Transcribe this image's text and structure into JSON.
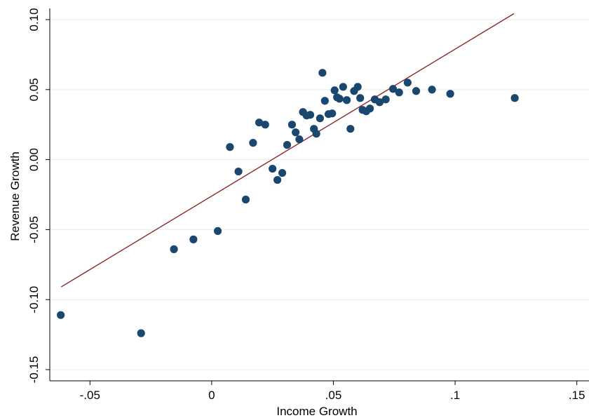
{
  "chart_data": {
    "type": "scatter",
    "xlabel": "Income Growth",
    "ylabel": "Revenue Growth",
    "xlim": [
      -0.0665,
      0.155
    ],
    "ylim": [
      -0.158,
      0.108
    ],
    "x_ticks": [
      {
        "value": -0.05,
        "label": "-.05"
      },
      {
        "value": 0,
        "label": "0"
      },
      {
        "value": 0.05,
        "label": ".05"
      },
      {
        "value": 0.1,
        "label": ".1"
      },
      {
        "value": 0.15,
        "label": ".15"
      }
    ],
    "y_ticks": [
      {
        "value": 0.1,
        "label": "0.10"
      },
      {
        "value": 0.05,
        "label": "0.05"
      },
      {
        "value": 0.0,
        "label": "0.00"
      },
      {
        "value": -0.05,
        "label": "-0.05"
      },
      {
        "value": -0.1,
        "label": "-0.10"
      },
      {
        "value": -0.15,
        "label": "-0.15"
      }
    ],
    "grid": true,
    "colors": {
      "points": "#1a476f",
      "fit_line": "#8b2a2a",
      "grid": "#eaf1f3"
    },
    "fit_line": {
      "x": [
        -0.0618,
        0.1242
      ],
      "y": [
        -0.0909,
        0.1043
      ]
    },
    "points": [
      {
        "x": -0.062,
        "y": -0.111
      },
      {
        "x": -0.029,
        "y": -0.124
      },
      {
        "x": -0.0155,
        "y": -0.064
      },
      {
        "x": -0.0075,
        "y": -0.057
      },
      {
        "x": 0.0025,
        "y": -0.051
      },
      {
        "x": 0.0075,
        "y": 0.009
      },
      {
        "x": 0.011,
        "y": -0.0085
      },
      {
        "x": 0.014,
        "y": -0.0285
      },
      {
        "x": 0.017,
        "y": 0.012
      },
      {
        "x": 0.0195,
        "y": 0.0265
      },
      {
        "x": 0.022,
        "y": 0.025
      },
      {
        "x": 0.025,
        "y": -0.0065
      },
      {
        "x": 0.027,
        "y": -0.0145
      },
      {
        "x": 0.029,
        "y": -0.0095
      },
      {
        "x": 0.031,
        "y": 0.0105
      },
      {
        "x": 0.033,
        "y": 0.025
      },
      {
        "x": 0.0345,
        "y": 0.0195
      },
      {
        "x": 0.036,
        "y": 0.0145
      },
      {
        "x": 0.0375,
        "y": 0.034
      },
      {
        "x": 0.039,
        "y": 0.0315
      },
      {
        "x": 0.0405,
        "y": 0.032
      },
      {
        "x": 0.042,
        "y": 0.022
      },
      {
        "x": 0.043,
        "y": 0.0185
      },
      {
        "x": 0.0445,
        "y": 0.0295
      },
      {
        "x": 0.0455,
        "y": 0.062
      },
      {
        "x": 0.0465,
        "y": 0.042
      },
      {
        "x": 0.048,
        "y": 0.0325
      },
      {
        "x": 0.0495,
        "y": 0.033
      },
      {
        "x": 0.0505,
        "y": 0.0495
      },
      {
        "x": 0.0515,
        "y": 0.0445
      },
      {
        "x": 0.0525,
        "y": 0.0435
      },
      {
        "x": 0.054,
        "y": 0.052
      },
      {
        "x": 0.0555,
        "y": 0.0425
      },
      {
        "x": 0.057,
        "y": 0.022
      },
      {
        "x": 0.0585,
        "y": 0.049
      },
      {
        "x": 0.06,
        "y": 0.052
      },
      {
        "x": 0.061,
        "y": 0.044
      },
      {
        "x": 0.062,
        "y": 0.0355
      },
      {
        "x": 0.0635,
        "y": 0.0345
      },
      {
        "x": 0.065,
        "y": 0.0365
      },
      {
        "x": 0.067,
        "y": 0.043
      },
      {
        "x": 0.069,
        "y": 0.041
      },
      {
        "x": 0.0715,
        "y": 0.043
      },
      {
        "x": 0.0745,
        "y": 0.0505
      },
      {
        "x": 0.077,
        "y": 0.048
      },
      {
        "x": 0.0805,
        "y": 0.055
      },
      {
        "x": 0.084,
        "y": 0.049
      },
      {
        "x": 0.0905,
        "y": 0.05
      },
      {
        "x": 0.098,
        "y": 0.047
      },
      {
        "x": 0.1245,
        "y": 0.044
      }
    ]
  }
}
